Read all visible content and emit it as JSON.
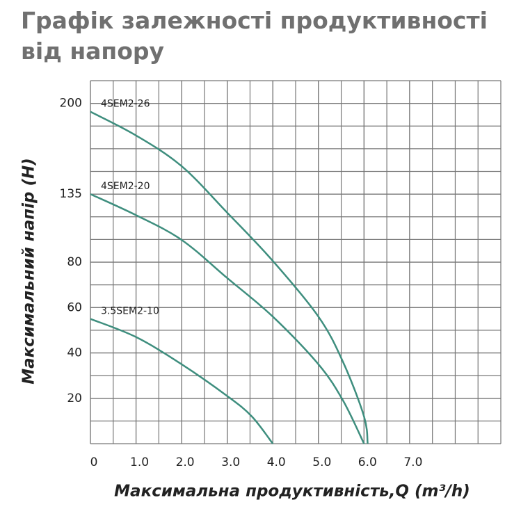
{
  "chart_data": {
    "type": "line",
    "title": "Графік залежності продуктивності від напору",
    "x_label": "Максимальна продуктивність,Q (m³/h)",
    "y_label": "Максимальний напір (H)",
    "xlim": [
      0,
      9
    ],
    "xticks": [
      0,
      {
        "value": 1,
        "label": "1.0"
      },
      {
        "value": 2,
        "label": "2.0"
      },
      {
        "value": 3,
        "label": "3.0"
      },
      {
        "value": 4,
        "label": "4.0"
      },
      {
        "value": 5,
        "label": "5.0"
      },
      {
        "value": 6,
        "label": "6.0"
      },
      {
        "value": 7,
        "label": "7.0"
      }
    ],
    "ylim": [
      0,
      216
    ],
    "yticks": [
      20,
      40,
      60,
      80,
      135,
      200
    ],
    "grid": true,
    "series": [
      {
        "name": "4SEM2-26",
        "color": "#3e8e7e",
        "x": [
          0,
          1,
          2,
          3,
          4,
          5,
          5.54,
          6.0,
          6.08
        ],
        "values": [
          194,
          177,
          155,
          120,
          81,
          56,
          36,
          12,
          0
        ]
      },
      {
        "name": "4SEM2-20",
        "color": "#3e8e7e",
        "x": [
          0,
          1,
          2,
          3,
          4,
          5,
          5.54,
          6.0
        ],
        "values": [
          135,
          118,
          98,
          73,
          56,
          35,
          19,
          0
        ]
      },
      {
        "name": "3.5SEM2-10",
        "color": "#3e8e7e",
        "x": [
          0,
          1,
          2,
          3,
          3.54,
          4.0
        ],
        "values": [
          55,
          47,
          35,
          21,
          12,
          0
        ]
      }
    ]
  }
}
